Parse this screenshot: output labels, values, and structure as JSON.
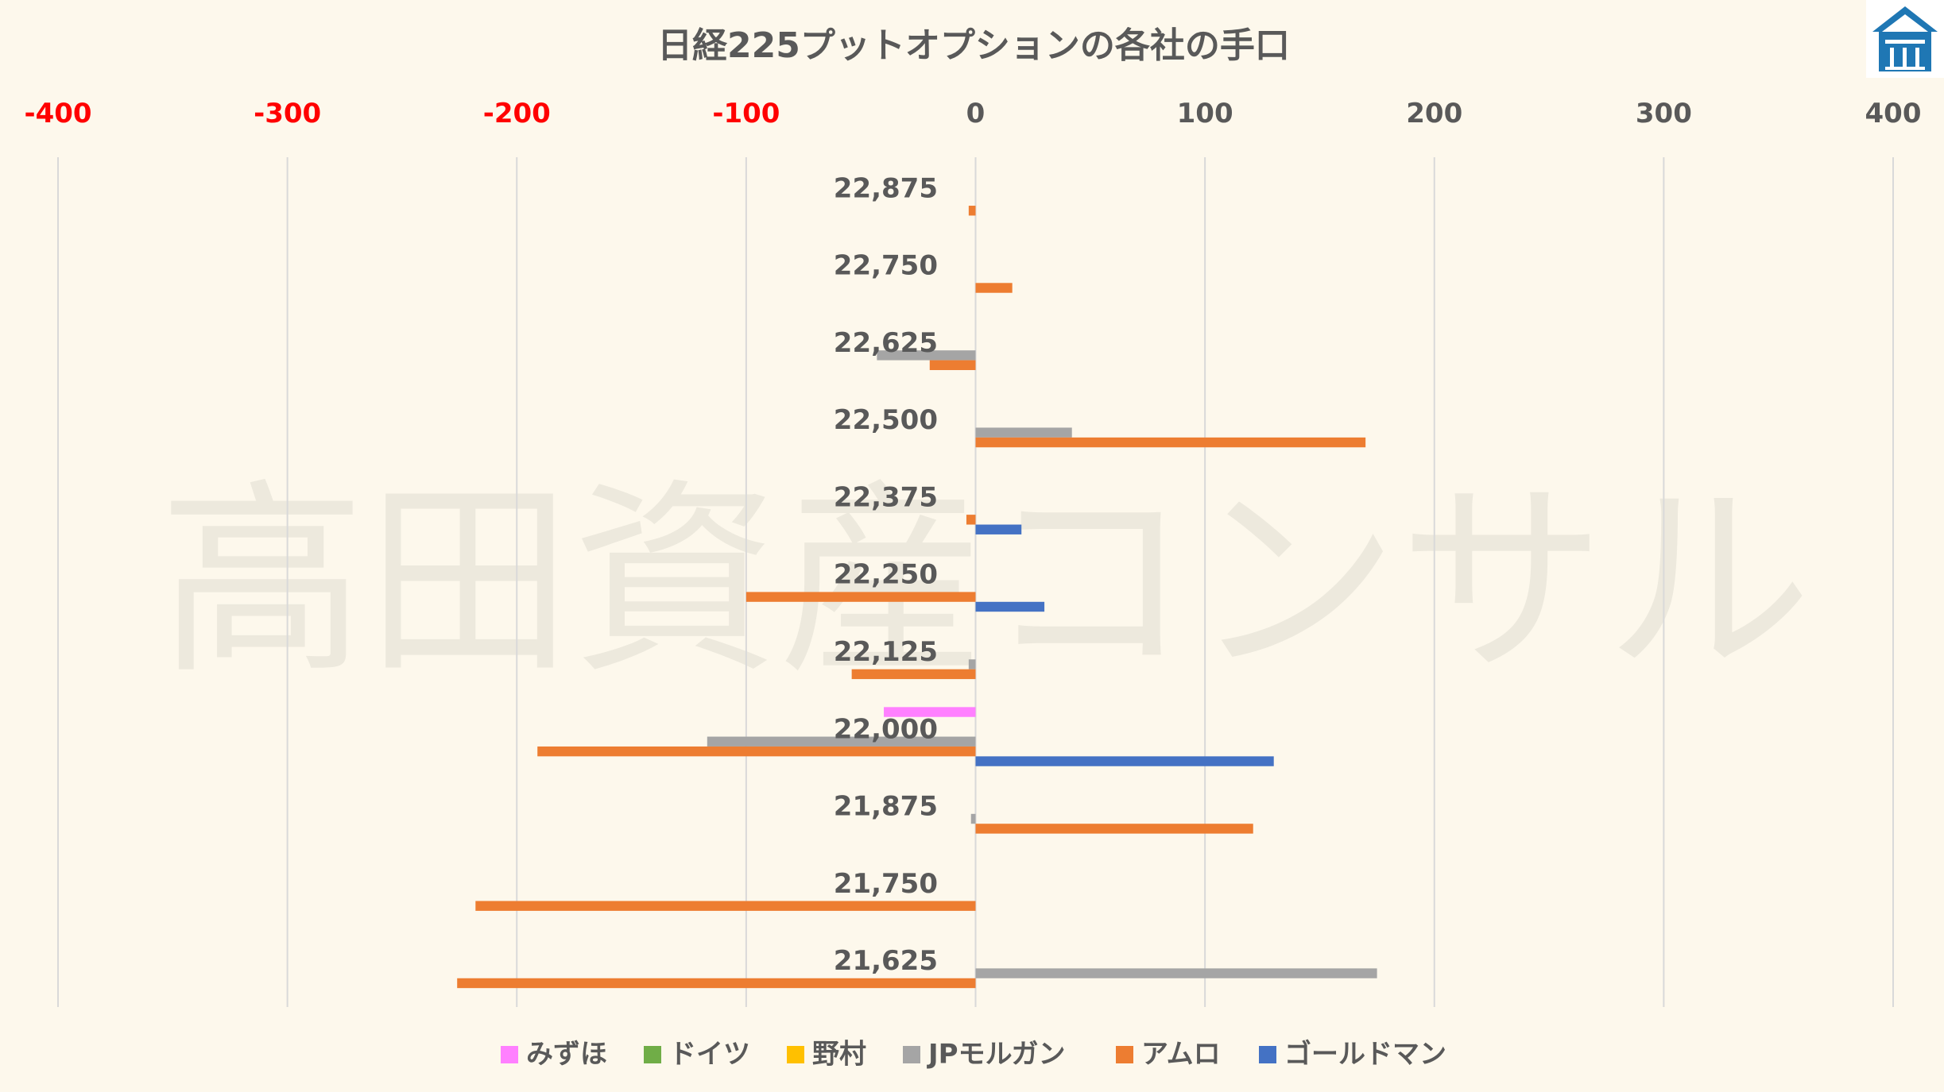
{
  "chart_data": {
    "type": "bar",
    "orientation": "horizontal",
    "title": "日経225プットオプションの各社の手口",
    "xlim": [
      -400,
      400
    ],
    "x_ticks": [
      -400,
      -300,
      -200,
      -100,
      0,
      100,
      200,
      300,
      400
    ],
    "negative_tick_color": "#ff0000",
    "positive_tick_color": "#595959",
    "grid": "vertical",
    "legend_position": "bottom",
    "watermark": "高田資産コンサル",
    "categories": [
      "22,875",
      "22,750",
      "22,625",
      "22,500",
      "22,375",
      "22,250",
      "22,125",
      "22,000",
      "21,875",
      "21,750",
      "21,625"
    ],
    "series": [
      {
        "name": "みずほ",
        "color": "#ff80ff",
        "values": [
          0,
          0,
          0,
          0,
          0,
          0,
          0,
          -40,
          0,
          0,
          0
        ]
      },
      {
        "name": "ドイツ",
        "color": "#70ad47",
        "values": [
          0,
          0,
          0,
          0,
          0,
          0,
          0,
          0,
          0,
          0,
          0
        ]
      },
      {
        "name": "野村",
        "color": "#ffc000",
        "values": [
          0,
          0,
          0,
          0,
          0,
          0,
          0,
          0,
          0,
          0,
          0
        ]
      },
      {
        "name": "JPモルガン",
        "color": "#a5a5a5",
        "values": [
          0,
          0,
          -43,
          42,
          0,
          0,
          -3,
          -117,
          -2,
          0,
          175
        ]
      },
      {
        "name": "アムロ",
        "color": "#ed7d31",
        "values": [
          -3,
          16,
          -20,
          170,
          -4,
          -100,
          -54,
          -191,
          121,
          -218,
          -226
        ]
      },
      {
        "name": "ゴールドマン",
        "color": "#4472c4",
        "values": [
          0,
          0,
          0,
          0,
          20,
          30,
          0,
          130,
          0,
          0,
          0
        ]
      }
    ]
  },
  "logo": {
    "color": "#1f77b4"
  }
}
